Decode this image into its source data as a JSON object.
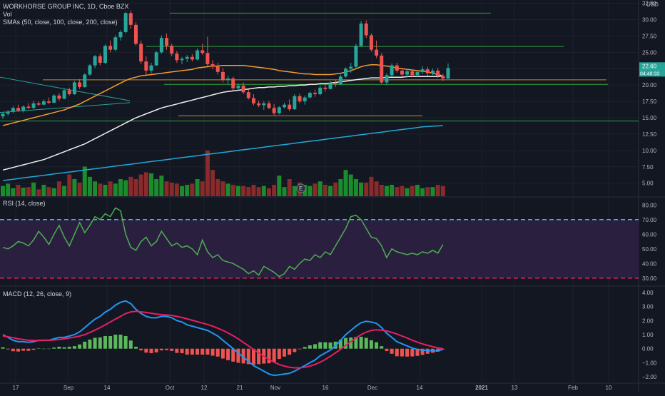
{
  "colors": {
    "background": "#131722",
    "grid": "#1e222d",
    "up": "#26a69a",
    "down": "#ef5350",
    "vol_up": "#1b8c2c",
    "vol_down": "#8a2a2a",
    "sma50": "#f39c2b",
    "sma100": "#f0f0f0",
    "sma200": "#21a8d8",
    "hline_green": "#2ea043",
    "hline_orange": "#c98a2b",
    "trend_teal": "#2aa198",
    "rsi_line": "#4caf50",
    "rsi_band": "#2a1f3f",
    "rsi_upper": "#26c6da",
    "rsi_lower": "#e91e63",
    "macd_line": "#2196f3",
    "signal_line": "#e91e63",
    "hist_pos": "#5cb85c",
    "hist_neg": "#ef5350",
    "last_price_bg": "#26a69a"
  },
  "legend": {
    "title": "WORKHORSE GROUP INC, 1D, Cboe BZX",
    "vol": "Vol",
    "smas": "SMAs (50, close, 100, close, 200, close)",
    "rsi": "RSI (14, close)",
    "macd": "MACD (12, 26, close, 9)"
  },
  "price_axis": {
    "currency": "USD",
    "ticks": [
      "32.50",
      "30.00",
      "27.50",
      "25.00",
      "22.50",
      "20.00",
      "17.50",
      "15.00",
      "12.50",
      "10.00",
      "7.50",
      "5.00"
    ],
    "last_price": "22.60",
    "countdown": "04:48:33"
  },
  "rsi_axis": {
    "ticks": [
      "80.00",
      "70.00",
      "60.00",
      "50.00",
      "40.00",
      "30.00"
    ]
  },
  "macd_axis": {
    "ticks": [
      "4.00",
      "3.00",
      "2.00",
      "1.00",
      "0.00",
      "−1.00",
      "−2.00"
    ]
  },
  "time_axis": {
    "labels": [
      "17",
      "Sep",
      "14",
      "Oct",
      "12",
      "21",
      "Nov",
      "16",
      "Dec",
      "14",
      "2021",
      "13",
      "Feb",
      "10"
    ],
    "earnings_marker": "E"
  },
  "chart_data": {
    "type": "candlestick",
    "title": "WORKHORSE GROUP INC, 1D, Cboe BZX",
    "y_range": [
      3.0,
      33.0
    ],
    "candles": [
      {
        "o": 15.2,
        "h": 15.9,
        "l": 14.8,
        "c": 15.6
      },
      {
        "o": 15.6,
        "h": 16.2,
        "l": 15.3,
        "c": 15.9
      },
      {
        "o": 15.9,
        "h": 16.8,
        "l": 15.7,
        "c": 16.5
      },
      {
        "o": 16.5,
        "h": 17.0,
        "l": 15.9,
        "c": 16.1
      },
      {
        "o": 16.1,
        "h": 16.9,
        "l": 15.8,
        "c": 16.7
      },
      {
        "o": 16.7,
        "h": 17.2,
        "l": 16.3,
        "c": 16.5
      },
      {
        "o": 16.5,
        "h": 17.6,
        "l": 16.3,
        "c": 17.2
      },
      {
        "o": 17.2,
        "h": 17.5,
        "l": 16.8,
        "c": 17.0
      },
      {
        "o": 17.0,
        "h": 17.8,
        "l": 16.9,
        "c": 17.5
      },
      {
        "o": 17.5,
        "h": 18.1,
        "l": 17.1,
        "c": 17.3
      },
      {
        "o": 17.3,
        "h": 18.6,
        "l": 17.2,
        "c": 18.4
      },
      {
        "o": 18.4,
        "h": 18.8,
        "l": 17.6,
        "c": 17.9
      },
      {
        "o": 17.9,
        "h": 19.4,
        "l": 17.8,
        "c": 19.2
      },
      {
        "o": 19.2,
        "h": 19.6,
        "l": 18.4,
        "c": 18.6
      },
      {
        "o": 18.6,
        "h": 20.6,
        "l": 18.5,
        "c": 20.4
      },
      {
        "o": 20.4,
        "h": 20.9,
        "l": 19.4,
        "c": 19.7
      },
      {
        "o": 19.7,
        "h": 21.8,
        "l": 19.6,
        "c": 21.6
      },
      {
        "o": 21.6,
        "h": 23.2,
        "l": 21.4,
        "c": 23.0
      },
      {
        "o": 23.0,
        "h": 24.6,
        "l": 22.6,
        "c": 24.4
      },
      {
        "o": 24.4,
        "h": 24.8,
        "l": 23.0,
        "c": 23.4
      },
      {
        "o": 23.4,
        "h": 26.2,
        "l": 23.2,
        "c": 26.0
      },
      {
        "o": 26.0,
        "h": 26.8,
        "l": 25.0,
        "c": 25.4
      },
      {
        "o": 25.4,
        "h": 27.6,
        "l": 25.2,
        "c": 27.3
      },
      {
        "o": 27.3,
        "h": 28.4,
        "l": 26.8,
        "c": 28.1
      },
      {
        "o": 28.1,
        "h": 31.2,
        "l": 27.9,
        "c": 31.0
      },
      {
        "o": 31.0,
        "h": 31.4,
        "l": 28.6,
        "c": 29.2
      },
      {
        "o": 29.2,
        "h": 29.6,
        "l": 26.0,
        "c": 26.3
      },
      {
        "o": 26.3,
        "h": 26.8,
        "l": 23.2,
        "c": 23.6
      },
      {
        "o": 23.6,
        "h": 24.4,
        "l": 21.6,
        "c": 22.2
      },
      {
        "o": 22.2,
        "h": 23.4,
        "l": 21.8,
        "c": 23.0
      },
      {
        "o": 23.0,
        "h": 25.2,
        "l": 22.9,
        "c": 25.0
      },
      {
        "o": 25.0,
        "h": 27.6,
        "l": 24.8,
        "c": 27.2
      },
      {
        "o": 27.2,
        "h": 27.9,
        "l": 25.4,
        "c": 26.0
      },
      {
        "o": 26.0,
        "h": 26.3,
        "l": 24.4,
        "c": 24.8
      },
      {
        "o": 24.8,
        "h": 25.2,
        "l": 23.4,
        "c": 23.8
      },
      {
        "o": 23.8,
        "h": 24.3,
        "l": 23.2,
        "c": 24.0
      },
      {
        "o": 24.0,
        "h": 24.6,
        "l": 23.5,
        "c": 24.3
      },
      {
        "o": 24.3,
        "h": 24.7,
        "l": 23.6,
        "c": 23.9
      },
      {
        "o": 23.9,
        "h": 25.6,
        "l": 23.8,
        "c": 25.3
      },
      {
        "o": 25.3,
        "h": 26.3,
        "l": 24.6,
        "c": 24.9
      },
      {
        "o": 24.9,
        "h": 27.4,
        "l": 22.9,
        "c": 23.2
      },
      {
        "o": 23.2,
        "h": 23.8,
        "l": 22.4,
        "c": 22.8
      },
      {
        "o": 22.8,
        "h": 23.4,
        "l": 21.6,
        "c": 22.0
      },
      {
        "o": 22.0,
        "h": 22.6,
        "l": 20.4,
        "c": 20.8
      },
      {
        "o": 20.8,
        "h": 21.4,
        "l": 20.2,
        "c": 21.0
      },
      {
        "o": 21.0,
        "h": 21.3,
        "l": 19.2,
        "c": 19.5
      },
      {
        "o": 19.5,
        "h": 20.3,
        "l": 19.2,
        "c": 19.9
      },
      {
        "o": 19.9,
        "h": 20.4,
        "l": 18.6,
        "c": 18.9
      },
      {
        "o": 18.9,
        "h": 19.3,
        "l": 17.8,
        "c": 18.0
      },
      {
        "o": 18.0,
        "h": 18.6,
        "l": 16.9,
        "c": 17.2
      },
      {
        "o": 17.2,
        "h": 17.6,
        "l": 16.6,
        "c": 16.9
      },
      {
        "o": 16.9,
        "h": 17.5,
        "l": 16.2,
        "c": 17.2
      },
      {
        "o": 17.2,
        "h": 17.6,
        "l": 16.3,
        "c": 16.5
      },
      {
        "o": 16.5,
        "h": 17.1,
        "l": 15.4,
        "c": 15.7
      },
      {
        "o": 15.7,
        "h": 16.8,
        "l": 15.5,
        "c": 16.6
      },
      {
        "o": 16.6,
        "h": 17.3,
        "l": 16.4,
        "c": 17.0
      },
      {
        "o": 17.0,
        "h": 17.8,
        "l": 16.0,
        "c": 16.3
      },
      {
        "o": 16.3,
        "h": 18.6,
        "l": 16.2,
        "c": 18.3
      },
      {
        "o": 18.3,
        "h": 18.7,
        "l": 17.2,
        "c": 17.5
      },
      {
        "o": 17.5,
        "h": 18.4,
        "l": 17.0,
        "c": 18.1
      },
      {
        "o": 18.1,
        "h": 19.0,
        "l": 17.9,
        "c": 18.8
      },
      {
        "o": 18.8,
        "h": 19.3,
        "l": 18.2,
        "c": 18.6
      },
      {
        "o": 18.6,
        "h": 19.9,
        "l": 18.4,
        "c": 19.6
      },
      {
        "o": 19.6,
        "h": 20.1,
        "l": 19.0,
        "c": 19.4
      },
      {
        "o": 19.4,
        "h": 20.6,
        "l": 19.3,
        "c": 20.3
      },
      {
        "o": 20.3,
        "h": 20.8,
        "l": 19.7,
        "c": 20.1
      },
      {
        "o": 20.1,
        "h": 21.6,
        "l": 20.0,
        "c": 21.3
      },
      {
        "o": 21.3,
        "h": 22.7,
        "l": 21.1,
        "c": 22.5
      },
      {
        "o": 22.5,
        "h": 23.4,
        "l": 21.9,
        "c": 22.8
      },
      {
        "o": 22.8,
        "h": 26.3,
        "l": 22.6,
        "c": 26.0
      },
      {
        "o": 26.0,
        "h": 29.8,
        "l": 25.8,
        "c": 29.4
      },
      {
        "o": 29.4,
        "h": 29.9,
        "l": 27.2,
        "c": 27.6
      },
      {
        "o": 27.6,
        "h": 27.9,
        "l": 25.1,
        "c": 25.4
      },
      {
        "o": 25.4,
        "h": 26.8,
        "l": 24.1,
        "c": 24.5
      },
      {
        "o": 24.5,
        "h": 24.9,
        "l": 20.2,
        "c": 20.4
      },
      {
        "o": 20.4,
        "h": 21.8,
        "l": 20.0,
        "c": 21.5
      },
      {
        "o": 21.5,
        "h": 23.3,
        "l": 21.3,
        "c": 23.0
      },
      {
        "o": 23.0,
        "h": 23.4,
        "l": 21.9,
        "c": 22.2
      },
      {
        "o": 22.2,
        "h": 22.6,
        "l": 21.3,
        "c": 21.6
      },
      {
        "o": 21.6,
        "h": 22.4,
        "l": 21.1,
        "c": 22.1
      },
      {
        "o": 22.1,
        "h": 22.4,
        "l": 21.2,
        "c": 21.5
      },
      {
        "o": 21.5,
        "h": 22.3,
        "l": 21.2,
        "c": 22.0
      },
      {
        "o": 22.0,
        "h": 22.9,
        "l": 21.7,
        "c": 22.4
      },
      {
        "o": 22.4,
        "h": 22.8,
        "l": 21.4,
        "c": 21.8
      },
      {
        "o": 21.8,
        "h": 22.5,
        "l": 21.5,
        "c": 22.2
      },
      {
        "o": 22.2,
        "h": 22.6,
        "l": 21.1,
        "c": 21.4
      },
      {
        "o": 21.4,
        "h": 21.7,
        "l": 20.6,
        "c": 21.0
      },
      {
        "o": 21.0,
        "h": 23.3,
        "l": 20.9,
        "c": 22.6
      }
    ],
    "volume": {
      "scale_max": 100,
      "bars": [
        18,
        22,
        14,
        20,
        15,
        16,
        24,
        12,
        20,
        16,
        14,
        26,
        18,
        38,
        30,
        24,
        52,
        34,
        26,
        22,
        20,
        26,
        22,
        30,
        28,
        34,
        30,
        38,
        42,
        40,
        30,
        36,
        26,
        24,
        22,
        18,
        20,
        22,
        30,
        26,
        80,
        46,
        30,
        26,
        22,
        20,
        18,
        18,
        16,
        20,
        16,
        18,
        14,
        20,
        36,
        16,
        30,
        18,
        24,
        20,
        18,
        22,
        26,
        20,
        18,
        24,
        30,
        46,
        38,
        30,
        24,
        24,
        34,
        26,
        20,
        18,
        20,
        16,
        18,
        14,
        18,
        20,
        14,
        16,
        16,
        20,
        18
      ]
    },
    "sma50": [
      13.8,
      14.0,
      14.2,
      14.4,
      14.6,
      14.8,
      15.0,
      15.2,
      15.4,
      15.6,
      15.8,
      16.0,
      16.2,
      16.5,
      16.8,
      17.1,
      17.5,
      17.9,
      18.3,
      18.7,
      19.1,
      19.5,
      19.9,
      20.3,
      20.7,
      21.0,
      21.2,
      21.4,
      21.5,
      21.6,
      21.7,
      21.8,
      21.9,
      22.0,
      22.1,
      22.2,
      22.3,
      22.4,
      22.6,
      22.7,
      22.8,
      22.9,
      22.9,
      23.0,
      23.0,
      23.0,
      23.0,
      23.0,
      22.9,
      22.8,
      22.7,
      22.6,
      22.5,
      22.4,
      22.2,
      22.1,
      22.0,
      21.9,
      21.8,
      21.7,
      21.7,
      21.6,
      21.6,
      21.6,
      21.6,
      21.7,
      21.8,
      22.0,
      22.2,
      22.5,
      22.8,
      23.0,
      23.1,
      23.1,
      23.0,
      22.9,
      22.8,
      22.6,
      22.5,
      22.4,
      22.3,
      22.2,
      22.1,
      22.0,
      21.8,
      21.6,
      21.4
    ],
    "sma100": [
      7.0,
      7.2,
      7.4,
      7.6,
      7.8,
      8.0,
      8.2,
      8.4,
      8.6,
      8.9,
      9.2,
      9.5,
      9.8,
      10.1,
      10.4,
      10.7,
      11.0,
      11.4,
      11.8,
      12.2,
      12.6,
      13.0,
      13.4,
      13.8,
      14.2,
      14.6,
      15.0,
      15.3,
      15.6,
      15.9,
      16.2,
      16.5,
      16.7,
      16.9,
      17.1,
      17.3,
      17.5,
      17.7,
      17.9,
      18.1,
      18.3,
      18.5,
      18.7,
      18.9,
      19.0,
      19.1,
      19.2,
      19.3,
      19.4,
      19.5,
      19.6,
      19.6,
      19.7,
      19.7,
      19.8,
      19.8,
      19.9,
      19.9,
      20.0,
      20.0,
      20.1,
      20.1,
      20.2,
      20.2,
      20.3,
      20.4,
      20.5,
      20.6,
      20.7,
      20.8,
      20.9,
      21.0,
      21.1,
      21.1,
      21.1,
      21.2,
      21.2,
      21.2,
      21.2,
      21.3,
      21.3,
      21.3,
      21.3,
      21.3,
      21.3,
      21.3,
      21.4
    ],
    "sma200": [
      5.4,
      5.5,
      5.6,
      5.7,
      5.8,
      5.9,
      6.0,
      6.1,
      6.2,
      6.3,
      6.4,
      6.5,
      6.6,
      6.7,
      6.8,
      6.9,
      7.0,
      7.1,
      7.2,
      7.3,
      7.4,
      7.5,
      7.6,
      7.7,
      7.8,
      7.9,
      8.0,
      8.1,
      8.2,
      8.3,
      8.4,
      8.5,
      8.6,
      8.7,
      8.8,
      8.9,
      9.0,
      9.1,
      9.2,
      9.3,
      9.4,
      9.5,
      9.6,
      9.7,
      9.8,
      9.9,
      10.0,
      10.1,
      10.2,
      10.3,
      10.4,
      10.5,
      10.6,
      10.7,
      10.8,
      10.9,
      11.0,
      11.1,
      11.2,
      11.3,
      11.4,
      11.5,
      11.6,
      11.7,
      11.8,
      11.9,
      12.0,
      12.1,
      12.2,
      12.3,
      12.4,
      12.5,
      12.6,
      12.7,
      12.8,
      12.9,
      13.0,
      13.1,
      13.2,
      13.3,
      13.4,
      13.5,
      13.6,
      13.65,
      13.7,
      13.75,
      13.8
    ],
    "hlines_green": [
      31.0,
      25.9,
      20.1,
      14.5
    ],
    "hlines_orange": [
      20.8,
      15.3
    ],
    "rsi": {
      "range": [
        25,
        85
      ],
      "upper": 70,
      "lower": 30,
      "values": [
        51,
        50,
        52,
        55,
        54,
        52,
        56,
        62,
        58,
        53,
        60,
        66,
        58,
        52,
        60,
        68,
        61,
        66,
        72,
        70,
        74,
        72,
        78,
        76,
        60,
        51,
        49,
        55,
        58,
        52,
        55,
        62,
        57,
        52,
        54,
        51,
        52,
        50,
        46,
        56,
        48,
        44,
        46,
        42,
        41,
        40,
        38,
        36,
        33,
        35,
        32,
        38,
        36,
        34,
        31,
        33,
        38,
        36,
        40,
        43,
        42,
        46,
        44,
        48,
        46,
        52,
        58,
        64,
        72,
        73,
        70,
        64,
        58,
        57,
        52,
        44,
        50,
        48,
        47,
        46,
        47,
        46,
        48,
        47,
        49,
        47,
        53
      ]
    },
    "macd": {
      "range": [
        -2.4,
        4.4
      ],
      "macd": [
        1.0,
        0.8,
        0.6,
        0.5,
        0.5,
        0.45,
        0.5,
        0.6,
        0.6,
        0.6,
        0.7,
        0.8,
        0.8,
        0.9,
        1.0,
        1.2,
        1.5,
        1.8,
        2.1,
        2.3,
        2.6,
        2.8,
        3.1,
        3.3,
        3.4,
        3.2,
        2.8,
        2.5,
        2.3,
        2.2,
        2.2,
        2.3,
        2.3,
        2.2,
        2.0,
        1.9,
        1.7,
        1.6,
        1.5,
        1.4,
        1.3,
        1.1,
        0.9,
        0.6,
        0.3,
        0.0,
        -0.3,
        -0.6,
        -0.9,
        -1.2,
        -1.4,
        -1.6,
        -1.8,
        -1.9,
        -1.85,
        -1.8,
        -1.75,
        -1.6,
        -1.4,
        -1.2,
        -1.0,
        -0.8,
        -0.5,
        -0.3,
        -0.1,
        0.2,
        0.6,
        1.0,
        1.3,
        1.6,
        1.85,
        1.95,
        1.9,
        1.8,
        1.5,
        1.1,
        0.8,
        0.5,
        0.35,
        0.2,
        0.05,
        -0.05,
        -0.1,
        -0.12,
        -0.15,
        -0.15,
        -0.05
      ],
      "signal": [
        0.9,
        0.85,
        0.78,
        0.7,
        0.65,
        0.6,
        0.58,
        0.58,
        0.6,
        0.6,
        0.62,
        0.66,
        0.7,
        0.76,
        0.82,
        0.9,
        1.0,
        1.15,
        1.32,
        1.5,
        1.7,
        1.9,
        2.1,
        2.3,
        2.5,
        2.62,
        2.66,
        2.62,
        2.58,
        2.52,
        2.46,
        2.42,
        2.4,
        2.36,
        2.3,
        2.22,
        2.12,
        2.02,
        1.92,
        1.82,
        1.72,
        1.6,
        1.46,
        1.3,
        1.12,
        0.92,
        0.7,
        0.45,
        0.2,
        -0.06,
        -0.3,
        -0.54,
        -0.76,
        -0.96,
        -1.12,
        -1.24,
        -1.32,
        -1.36,
        -1.36,
        -1.32,
        -1.24,
        -1.12,
        -0.96,
        -0.76,
        -0.54,
        -0.3,
        -0.04,
        0.24,
        0.5,
        0.76,
        1.0,
        1.18,
        1.3,
        1.34,
        1.32,
        1.26,
        1.16,
        1.04,
        0.9,
        0.76,
        0.6,
        0.46,
        0.34,
        0.24,
        0.14,
        0.06,
        0.0
      ]
    }
  }
}
